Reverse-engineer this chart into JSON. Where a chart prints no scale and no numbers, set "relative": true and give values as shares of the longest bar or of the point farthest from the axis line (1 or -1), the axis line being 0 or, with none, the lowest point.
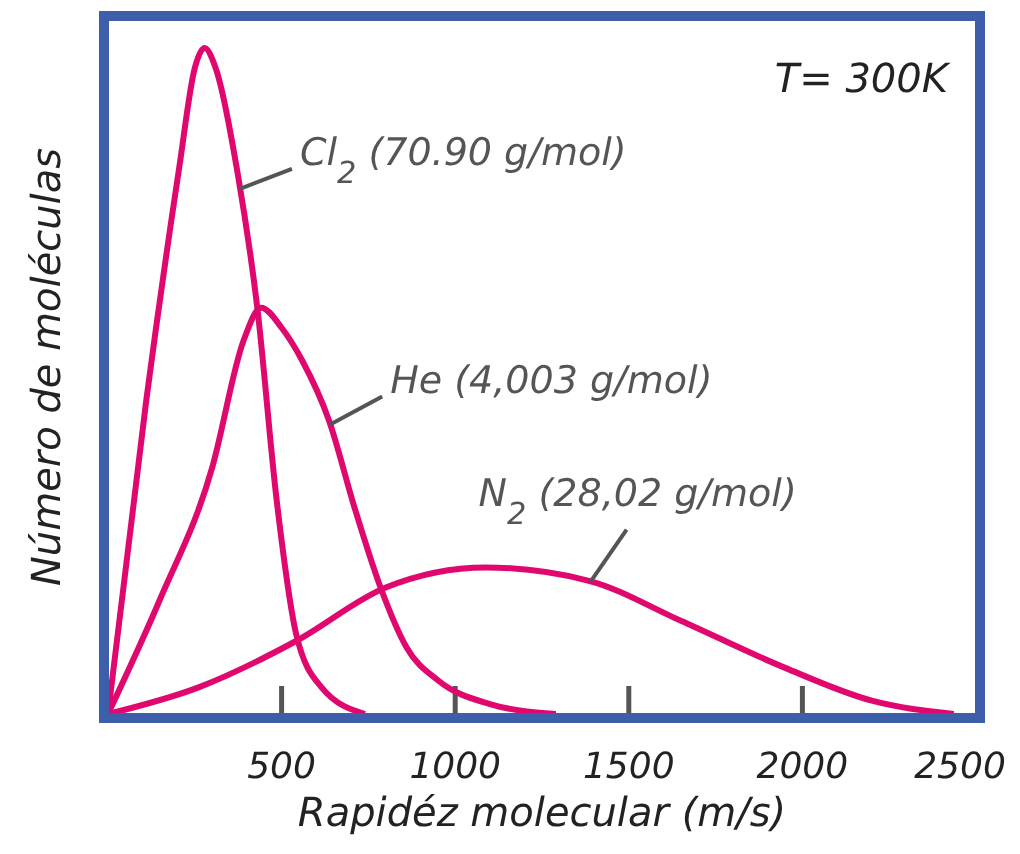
{
  "chart_data": {
    "type": "line",
    "relative": true,
    "xlabel": "Rapidéz molecular (m/s)",
    "ylabel": "Número de moléculas",
    "xlim": [
      0,
      2500
    ],
    "xticks": [
      500,
      1000,
      1500,
      2000,
      2500
    ],
    "legend": false,
    "grid": false,
    "marker": "none",
    "line_style": "solid",
    "annotations": [
      "T= 300K"
    ],
    "series": [
      {
        "name": "Cl$_{2}$ (70.90 g/mol)",
        "color": "#e0086e",
        "x": [
          0,
          110,
          205,
          250,
          278,
          310,
          374,
          430,
          486,
          542,
          615,
          740
        ],
        "values": [
          0,
          0.47,
          0.82,
          0.97,
          1,
          0.97,
          0.81,
          0.61,
          0.32,
          0.12,
          0.04,
          0
        ]
      },
      {
        "name": "He (4,003 g/mol)",
        "color": "#e0086e",
        "x": [
          0,
          148,
          300,
          390,
          441,
          500,
          560,
          637,
          710,
          785,
          860,
          952,
          1100,
          1290
        ],
        "values": [
          0,
          0.17,
          0.37,
          0.56,
          0.61,
          0.58,
          0.53,
          0.44,
          0.31,
          0.19,
          0.1,
          0.05,
          0.015,
          0
        ]
      },
      {
        "name": "N$_{2}$ (28,02 g/mol)",
        "color": "#e0086e",
        "x": [
          0,
          261,
          543,
          800,
          1087,
          1385,
          1650,
          1947,
          2200,
          2436
        ],
        "values": [
          0,
          0.04,
          0.11,
          0.19,
          0.22,
          0.2,
          0.14,
          0.07,
          0.02,
          0
        ]
      }
    ]
  }
}
